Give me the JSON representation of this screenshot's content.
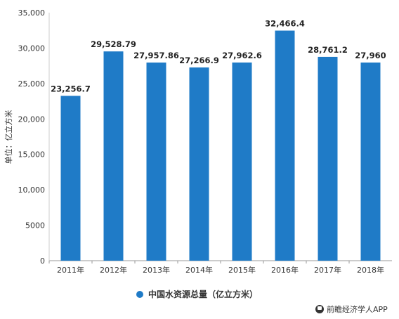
{
  "chart_data": {
    "type": "bar",
    "categories": [
      "2011年",
      "2012年",
      "2013年",
      "2014年",
      "2015年",
      "2016年",
      "2017年",
      "2018年"
    ],
    "values": [
      23256.7,
      29528.79,
      27957.86,
      27266.9,
      27962.6,
      32466.4,
      28761.2,
      27960
    ],
    "data_labels": [
      "23,256.7",
      "29,528.79",
      "27,957.86",
      "27,266.9",
      "27,962.6",
      "32,466.4",
      "28,761.2",
      "27,960"
    ],
    "series": [
      {
        "name": "中国水资源总量（亿立方米）",
        "color": "#1f7bc7"
      }
    ],
    "ylabel": "单位：亿立方米",
    "ylim": [
      0,
      35000
    ],
    "y_ticks": [
      0,
      5000,
      10000,
      15000,
      20000,
      25000,
      30000,
      35000
    ],
    "y_tick_labels": [
      "0",
      "5000",
      "10,000",
      "15,000",
      "20,000",
      "25,000",
      "30,000",
      "35,000"
    ],
    "grid": false,
    "legend_position": "bottom"
  },
  "brand": {
    "name": "前瞻经济学人APP",
    "icon": "fist-logo-icon"
  }
}
